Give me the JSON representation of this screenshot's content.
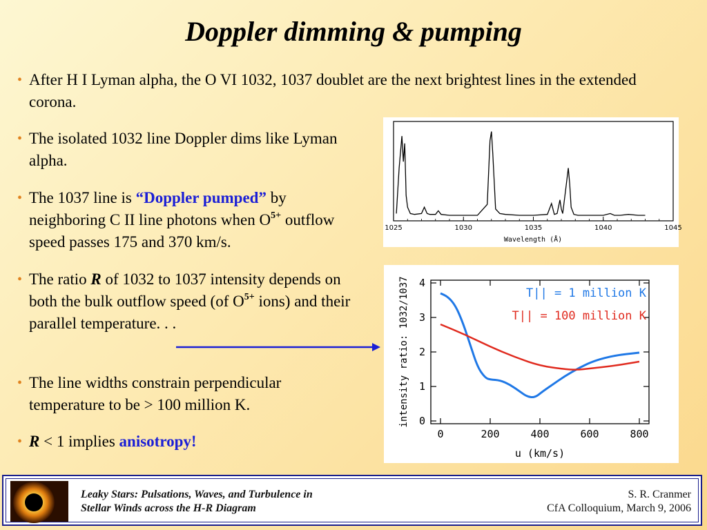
{
  "title": "Doppler dimming & pumping",
  "bullets": {
    "b1": "After H I Lyman alpha, the O VI 1032, 1037 doublet are the next brightest lines in the extended corona.",
    "b2": "The isolated 1032 line Doppler dims like Lyman alpha.",
    "b3_pre": "The 1037 line is ",
    "b3_emph": "“Doppler pumped”",
    "b3_post1": " by neighboring C II line photons when O",
    "b3_sup": "5+",
    "b3_post2": " outflow speed passes 175 and 370 km/s.",
    "b4_pre": "The ratio ",
    "b4_R": "R",
    "b4_mid1": " of 1032 to 1037 intensity depends on both the bulk outflow speed (of O",
    "b4_sup": "5+",
    "b4_post": " ions) and their parallel temperature. . .",
    "b5": "The line widths constrain perpendicular temperature to be > 100 million K.",
    "b6_R": "R",
    "b6_mid": " < 1 implies ",
    "b6_emph": "anisotropy!"
  },
  "footer": {
    "left_line1": "Leaky Stars:  Pulsations, Waves, and Turbulence in",
    "left_line2": "Stellar Winds across the H-R Diagram",
    "right_line1": "S. R. Cranmer",
    "right_line2": "CfA Colloquium,  March 9, 2006"
  },
  "colors": {
    "accent_blue": "#1b1fd6",
    "bullet_orange": "#e0821e",
    "footer_border": "#1a1f8c",
    "curve_blue": "#1f78e6",
    "curve_red": "#e02a1e"
  },
  "chart_data": [
    {
      "type": "line",
      "xlabel": "Wavelength (Å)",
      "ylabel": "",
      "xlim": [
        1025,
        1045
      ],
      "x_ticks": [
        "1025",
        "1030",
        "1035",
        "1040",
        "1045"
      ],
      "series": [
        {
          "x": [
            1025.2,
            1025.4,
            1025.6,
            1025.7,
            1025.8,
            1025.9,
            1026.0,
            1026.2,
            1026.5,
            1027.0,
            1027.2,
            1027.4,
            1027.6,
            1028.0,
            1028.2,
            1028.4,
            1029.0,
            1030.0,
            1031.0,
            1031.7,
            1031.9,
            1032.0,
            1032.1,
            1032.3,
            1032.6,
            1033.0,
            1034.0,
            1035.0,
            1036.0,
            1036.3,
            1036.5,
            1036.7,
            1036.9,
            1037.0,
            1037.1,
            1037.3,
            1037.5,
            1037.6,
            1037.7,
            1037.9,
            1038.2,
            1039.0,
            1040.0,
            1040.5,
            1040.8,
            1041.2,
            1041.8,
            1042.5,
            1043.0
          ],
          "y": [
            0.05,
            0.55,
            0.9,
            0.62,
            0.82,
            0.25,
            0.12,
            0.05,
            0.04,
            0.05,
            0.12,
            0.05,
            0.04,
            0.04,
            0.08,
            0.04,
            0.03,
            0.03,
            0.03,
            0.15,
            0.85,
            0.95,
            0.7,
            0.1,
            0.05,
            0.04,
            0.03,
            0.03,
            0.04,
            0.16,
            0.04,
            0.05,
            0.2,
            0.1,
            0.05,
            0.3,
            0.55,
            0.38,
            0.12,
            0.04,
            0.03,
            0.03,
            0.03,
            0.05,
            0.03,
            0.03,
            0.04,
            0.03,
            0.03
          ]
        }
      ]
    },
    {
      "type": "line",
      "xlabel": "u  (km/s)",
      "ylabel": "intensity ratio: 1032/1037",
      "xlim": [
        0,
        800
      ],
      "ylim": [
        0,
        4
      ],
      "x_ticks": [
        0,
        200,
        400,
        600,
        800
      ],
      "y_ticks": [
        0,
        1,
        2,
        3,
        4
      ],
      "series": [
        {
          "name": "T|| = 1 million K",
          "color": "#1f78e6",
          "x": [
            0,
            30,
            60,
            90,
            120,
            150,
            180,
            200,
            240,
            280,
            320,
            350,
            380,
            410,
            450,
            500,
            560,
            620,
            700,
            800
          ],
          "y": [
            3.7,
            3.6,
            3.35,
            2.85,
            2.2,
            1.55,
            1.25,
            1.2,
            1.18,
            1.05,
            0.85,
            0.7,
            0.68,
            0.85,
            1.05,
            1.3,
            1.55,
            1.75,
            1.9,
            1.98
          ]
        },
        {
          "name": "T|| = 100 million K",
          "color": "#e02a1e",
          "x": [
            0,
            100,
            200,
            300,
            400,
            500,
            550,
            600,
            700,
            800
          ],
          "y": [
            2.8,
            2.5,
            2.15,
            1.85,
            1.6,
            1.5,
            1.48,
            1.52,
            1.6,
            1.72
          ]
        }
      ]
    }
  ]
}
